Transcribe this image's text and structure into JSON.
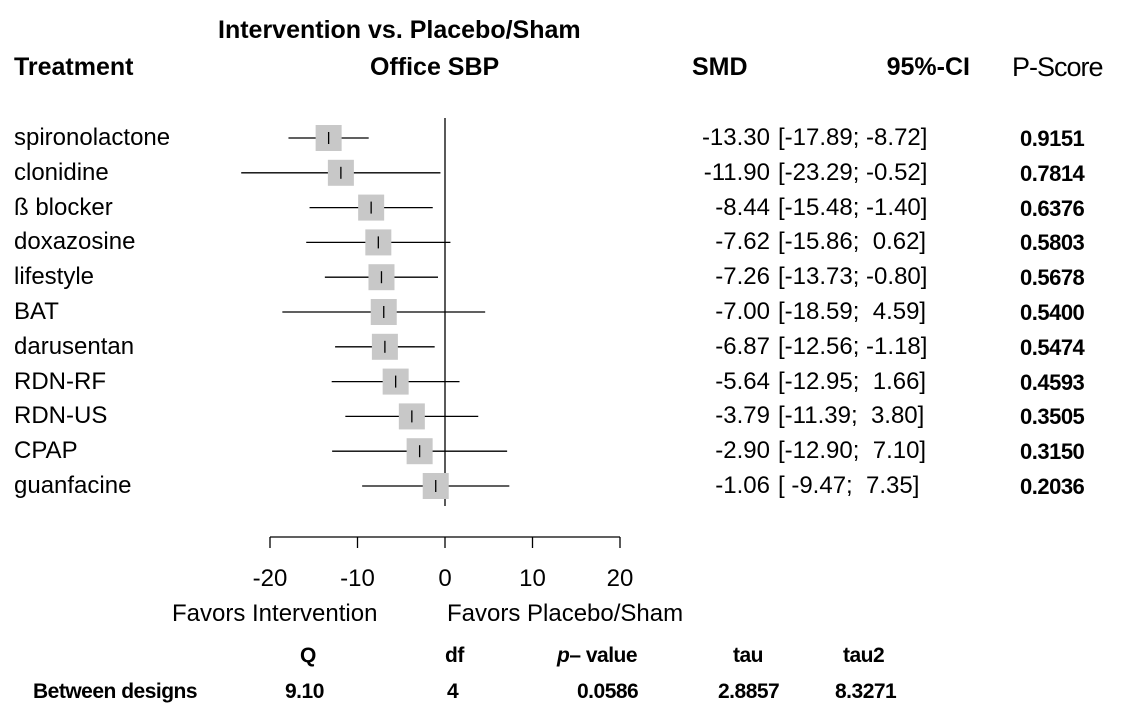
{
  "header": {
    "treatment": "Treatment",
    "comparison_title": "Intervention vs. Placebo/Sham",
    "outcome": "Office SBP",
    "smd": "SMD",
    "ci": "95%-CI",
    "pscore": "P-Score"
  },
  "rows": [
    {
      "name": "spironolactone",
      "smd_text": "-13.30",
      "ci_text": "[-17.89; -8.72]",
      "pscore": "0.9151"
    },
    {
      "name": "clonidine",
      "smd_text": "-11.90",
      "ci_text": "[-23.29; -0.52]",
      "pscore": "0.7814"
    },
    {
      "name": "ß blocker",
      "smd_text": "-8.44",
      "ci_text": "[-15.48; -1.40]",
      "pscore": "0.6376"
    },
    {
      "name": "doxazosine",
      "smd_text": "-7.62",
      "ci_text": "[-15.86;  0.62]",
      "pscore": "0.5803"
    },
    {
      "name": "lifestyle",
      "smd_text": "-7.26",
      "ci_text": "[-13.73; -0.80]",
      "pscore": "0.5678"
    },
    {
      "name": "BAT",
      "smd_text": "-7.00",
      "ci_text": "[-18.59;  4.59]",
      "pscore": "0.5400"
    },
    {
      "name": "darusentan",
      "smd_text": "-6.87",
      "ci_text": "[-12.56; -1.18]",
      "pscore": "0.5474"
    },
    {
      "name": "RDN-RF",
      "smd_text": "-5.64",
      "ci_text": "[-12.95;  1.66]",
      "pscore": "0.4593"
    },
    {
      "name": "RDN-US",
      "smd_text": "-3.79",
      "ci_text": "[-11.39;  3.80]",
      "pscore": "0.3505"
    },
    {
      "name": "CPAP",
      "smd_text": "-2.90",
      "ci_text": "[-12.90;  7.10]",
      "pscore": "0.3150"
    },
    {
      "name": "guanfacine",
      "smd_text": "-1.06",
      "ci_text": "[ -9.47;  7.35]",
      "pscore": "0.2036"
    }
  ],
  "axis": {
    "favors_left": "Favors Intervention",
    "favors_right": "Favors Placebo/Sham"
  },
  "footer": {
    "headers": {
      "q": "Q",
      "df": "df",
      "p_italic": "p",
      "p_rest": "– value",
      "tau": "tau",
      "tau2": "tau2"
    },
    "row_label": "Between designs",
    "q": "9.10",
    "df": "4",
    "p": "0.0586",
    "tau": "2.8857",
    "tau2": "8.3271"
  },
  "chart_data": {
    "type": "forest",
    "xlim": [
      -20,
      20
    ],
    "xticks": [
      -20,
      -10,
      0,
      10,
      20
    ],
    "reference_line": 0,
    "marker_color": "#c8c8c8",
    "series": [
      {
        "label": "spironolactone",
        "smd": -13.3,
        "lower": -17.89,
        "upper": -8.72
      },
      {
        "label": "clonidine",
        "smd": -11.9,
        "lower": -23.29,
        "upper": -0.52
      },
      {
        "label": "ß blocker",
        "smd": -8.44,
        "lower": -15.48,
        "upper": -1.4
      },
      {
        "label": "doxazosine",
        "smd": -7.62,
        "lower": -15.86,
        "upper": 0.62
      },
      {
        "label": "lifestyle",
        "smd": -7.26,
        "lower": -13.73,
        "upper": -0.8
      },
      {
        "label": "BAT",
        "smd": -7.0,
        "lower": -18.59,
        "upper": 4.59
      },
      {
        "label": "darusentan",
        "smd": -6.87,
        "lower": -12.56,
        "upper": -1.18
      },
      {
        "label": "RDN-RF",
        "smd": -5.64,
        "lower": -12.95,
        "upper": 1.66
      },
      {
        "label": "RDN-US",
        "smd": -3.79,
        "lower": -11.39,
        "upper": 3.8
      },
      {
        "label": "CPAP",
        "smd": -2.9,
        "lower": -12.9,
        "upper": 7.1
      },
      {
        "label": "guanfacine",
        "smd": -1.06,
        "lower": -9.47,
        "upper": 7.35
      }
    ]
  }
}
